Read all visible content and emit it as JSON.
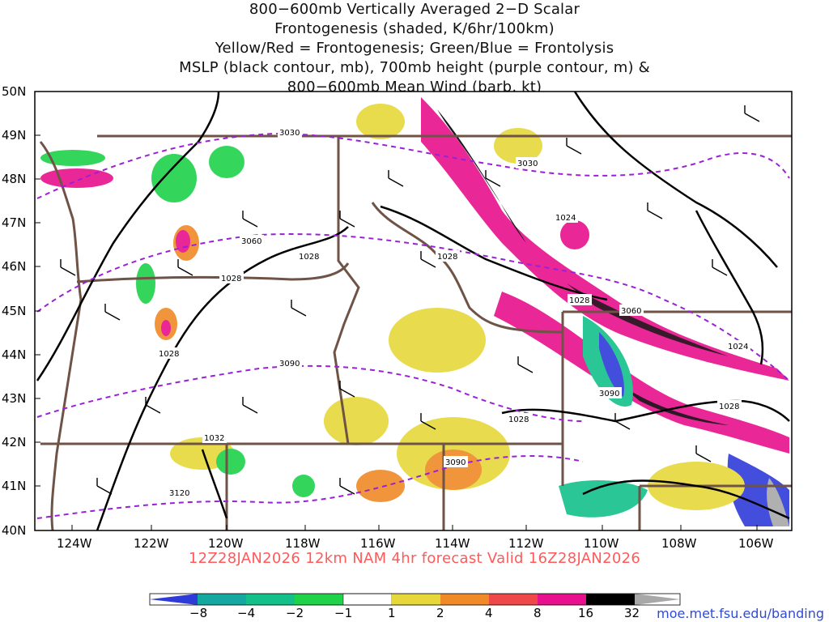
{
  "title_lines": [
    "800−600mb Vertically Averaged 2−D Scalar",
    "Frontogenesis (shaded, K/6hr/100km)",
    "Yellow/Red = Frontogenesis;  Green/Blue = Frontolysis",
    "MSLP (black contour, mb), 700mb height (purple contour, m) &",
    "800−600mb Mean Wind (barb, kt)"
  ],
  "lat_labels": [
    "50N",
    "49N",
    "48N",
    "47N",
    "46N",
    "45N",
    "44N",
    "43N",
    "42N",
    "41N",
    "40N"
  ],
  "lon_labels": [
    "124W",
    "122W",
    "120W",
    "118W",
    "116W",
    "114W",
    "112W",
    "110W",
    "108W",
    "106W"
  ],
  "contour_labels": {
    "mslp": [
      "1028",
      "1028",
      "1028",
      "1028",
      "1028",
      "1028",
      "1028",
      "1024",
      "1024",
      "1032"
    ],
    "height": [
      "3030",
      "3030",
      "3060",
      "3060",
      "3090",
      "3090",
      "3090",
      "3120"
    ]
  },
  "valid_text": "12Z28JAN2026  12km NAM  4hr forecast Valid  16Z28JAN2026",
  "colorbar": {
    "ticks": [
      "−8",
      "−4",
      "−2",
      "−1",
      "1",
      "2",
      "4",
      "8",
      "16",
      "32"
    ],
    "colors": [
      "#2f3bd9",
      "#14a8a0",
      "#14c08a",
      "#1ed24a",
      "#ffffff",
      "#e6d83a",
      "#f08a28",
      "#f04848",
      "#e8108c",
      "#000000",
      "#a8a8a8"
    ]
  },
  "credit": "moe.met.fsu.edu/banding",
  "colors": {
    "mslp": "#000000",
    "height": "#9a20d8",
    "borders": "#6f5346",
    "valid": "#ff5a5a",
    "credit": "#2f4bd6"
  }
}
